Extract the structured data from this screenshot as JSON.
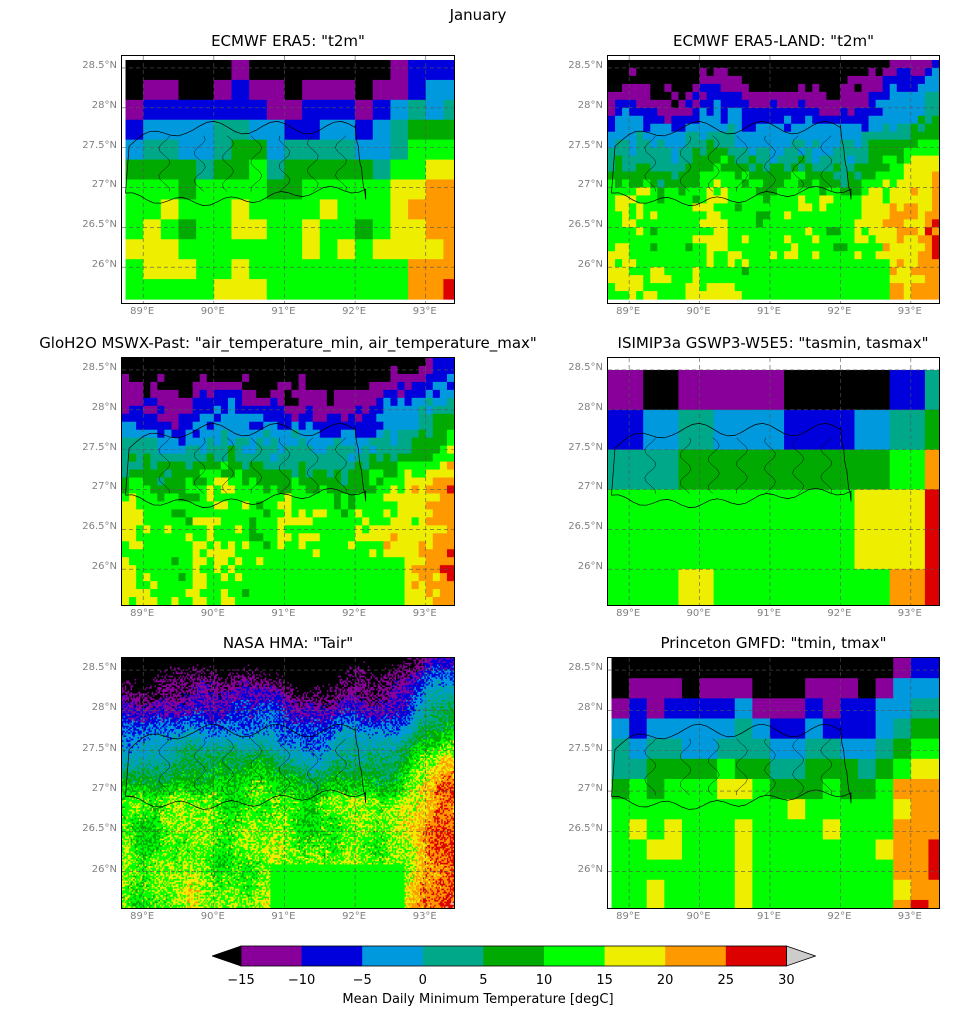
{
  "suptitle": "January",
  "chart_data": {
    "type": "heatmap",
    "suptitle": "January",
    "xlim": [
      88.7,
      93.4
    ],
    "ylim": [
      25.55,
      28.65
    ],
    "x_ticks": [
      "89°E",
      "90°E",
      "91°E",
      "92°E",
      "93°E"
    ],
    "x_tick_values": [
      89,
      90,
      91,
      92,
      93
    ],
    "y_ticks": [
      "28.5°N",
      "28°N",
      "27.5°N",
      "27°N",
      "26.5°N",
      "26°N"
    ],
    "y_tick_values": [
      28.5,
      28,
      27.5,
      27,
      26.5,
      26
    ],
    "grid": true,
    "colorbar": {
      "label": "Mean Daily Minimum Temperature [degC]",
      "ticks": [
        "−15",
        "−10",
        "−5",
        "0",
        "5",
        "10",
        "15",
        "20",
        "25",
        "30"
      ],
      "bounds": [
        -15,
        -10,
        -5,
        0,
        5,
        10,
        15,
        20,
        25,
        30
      ],
      "colors": [
        "#880099",
        "#0000dd",
        "#0099dd",
        "#00a88a",
        "#00aa00",
        "#00ff00",
        "#eeee00",
        "#ff9900",
        "#dd0000"
      ],
      "under_color": "#000000",
      "over_color": "#cccccc"
    },
    "panels": [
      {
        "title": "ECMWF ERA5: \"t2m\"",
        "resolution": 0.25,
        "left_edge": 88.75,
        "right_edge": 93.4,
        "bottom_edge": 25.6,
        "top_edge": 28.6
      },
      {
        "title": "ECMWF ERA5-LAND: \"t2m\"",
        "resolution": 0.1,
        "left_edge": 88.7,
        "right_edge": 93.4,
        "bottom_edge": 25.6,
        "top_edge": 28.6
      },
      {
        "title": "GloH2O MSWX-Past: \"air_temperature_min, air_temperature_max\"",
        "resolution": 0.1,
        "left_edge": 88.7,
        "right_edge": 93.4,
        "bottom_edge": 25.55,
        "top_edge": 28.65
      },
      {
        "title": "ISIMIP3a GSWP3-W5E5: \"tasmin, tasmax\"",
        "resolution": 0.5,
        "left_edge": 88.7,
        "right_edge": 93.4,
        "bottom_edge": 25.55,
        "top_edge": 28.5
      },
      {
        "title": "NASA HMA: \"Tair\"",
        "resolution": 0.02,
        "left_edge": 88.7,
        "right_edge": 93.4,
        "bottom_edge": 25.55,
        "top_edge": 28.65
      },
      {
        "title": "Princeton GMFD: \"tmin, tmax\"",
        "resolution": 0.25,
        "left_edge": 88.75,
        "right_edge": 93.4,
        "bottom_edge": 25.55,
        "top_edge": 28.65
      }
    ]
  }
}
